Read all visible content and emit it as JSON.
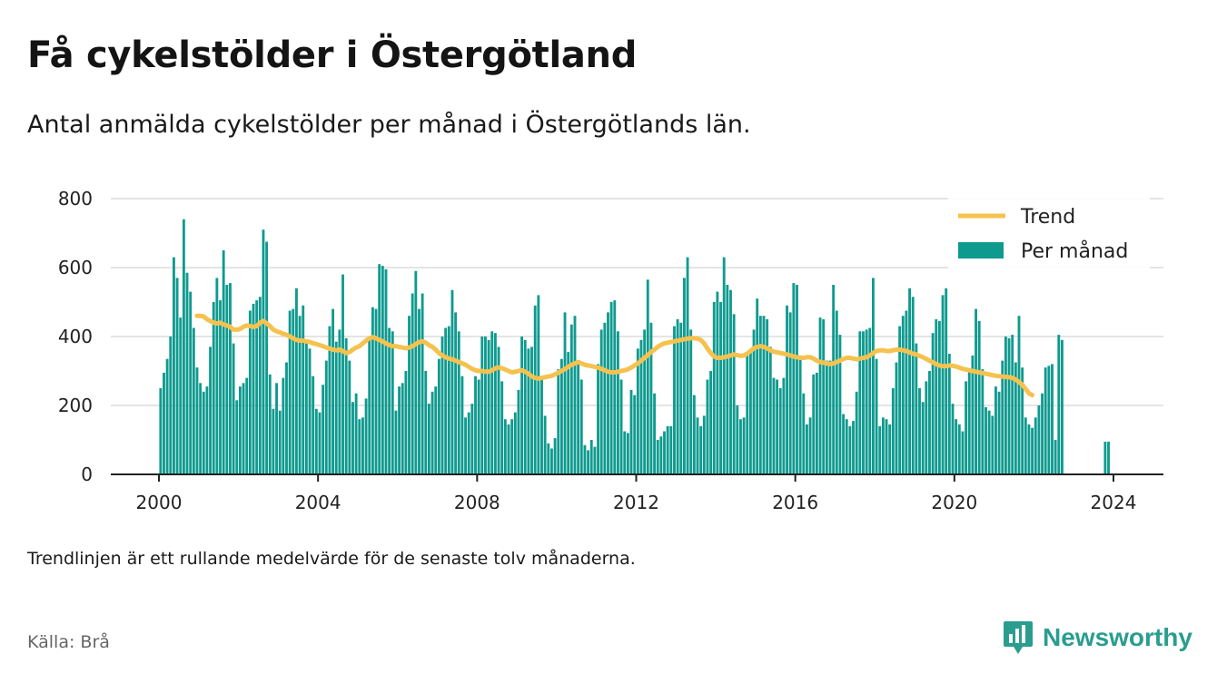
{
  "header": {
    "title": "Få cykelstölder i Östergötland",
    "subtitle": "Antal anmälda cykelstölder per månad i Östergötlands län."
  },
  "footer": {
    "note": "Trendlinjen är ett rullande medelvärde för de senaste tolv månaderna.",
    "source": "Källa: Brå",
    "brand": "Newsworthy"
  },
  "colors": {
    "bar": "#0f9a8f",
    "trend": "#f5c24f",
    "grid": "#dcdcdc",
    "axis": "#222222",
    "brand": "#2a9d8f"
  },
  "chart_data": {
    "type": "bar",
    "x_unit": "month",
    "start": "2000-01",
    "end": "2023-12",
    "xlim": [
      2000,
      2024
    ],
    "ylim": [
      0,
      800
    ],
    "yticks": [
      0,
      200,
      400,
      600,
      800
    ],
    "xticks": [
      2000,
      2004,
      2008,
      2012,
      2016,
      2020,
      2024
    ],
    "grid": true,
    "legend_position": "top-right",
    "series": [
      {
        "name": "Per månad",
        "type": "bar",
        "values": [
          250,
          295,
          335,
          400,
          630,
          570,
          455,
          740,
          585,
          530,
          425,
          310,
          265,
          240,
          255,
          370,
          500,
          570,
          505,
          650,
          550,
          555,
          380,
          215,
          255,
          265,
          280,
          475,
          495,
          505,
          515,
          710,
          675,
          290,
          190,
          265,
          185,
          280,
          325,
          475,
          480,
          540,
          460,
          490,
          380,
          365,
          285,
          190,
          180,
          260,
          330,
          430,
          480,
          385,
          420,
          580,
          395,
          330,
          210,
          235,
          160,
          165,
          220,
          400,
          485,
          480,
          610,
          605,
          595,
          425,
          415,
          185,
          255,
          265,
          300,
          460,
          525,
          590,
          480,
          525,
          300,
          205,
          240,
          255,
          335,
          400,
          425,
          430,
          535,
          470,
          415,
          285,
          165,
          180,
          205,
          285,
          275,
          400,
          400,
          390,
          415,
          410,
          370,
          270,
          160,
          145,
          160,
          180,
          245,
          400,
          390,
          365,
          370,
          490,
          520,
          285,
          170,
          90,
          75,
          105,
          305,
          335,
          470,
          355,
          435,
          460,
          320,
          275,
          85,
          70,
          100,
          80,
          320,
          420,
          440,
          470,
          500,
          505,
          415,
          275,
          125,
          120,
          245,
          230,
          365,
          390,
          420,
          565,
          440,
          235,
          100,
          110,
          125,
          140,
          140,
          430,
          450,
          440,
          570,
          630,
          420,
          230,
          165,
          140,
          170,
          275,
          300,
          500,
          530,
          500,
          630,
          550,
          535,
          465,
          200,
          160,
          165,
          350,
          360,
          420,
          510,
          460,
          460,
          450,
          370,
          280,
          275,
          250,
          280,
          490,
          470,
          555,
          550,
          345,
          235,
          145,
          165,
          290,
          295,
          455,
          450,
          330,
          330,
          550,
          475,
          405,
          175,
          160,
          140,
          155,
          240,
          415,
          415,
          420,
          425,
          570,
          335,
          140,
          165,
          160,
          145,
          250,
          325,
          430,
          460,
          475,
          540,
          515,
          380,
          250,
          210,
          270,
          300,
          410,
          450,
          445,
          520,
          540,
          350,
          205,
          160,
          145,
          125,
          270,
          300,
          345,
          480,
          445,
          305,
          195,
          185,
          170,
          255,
          240,
          330,
          400,
          395,
          405,
          325,
          460,
          310,
          165,
          145,
          135,
          165,
          200,
          235,
          310,
          315,
          320,
          100,
          405,
          390,
          0,
          0,
          0,
          0,
          0,
          0,
          0,
          0,
          0,
          0,
          0,
          0,
          95,
          95,
          0
        ]
      },
      {
        "name": "Trend",
        "type": "line",
        "start": "2000-12",
        "values": [
          460,
          460,
          458,
          450,
          445,
          440,
          438,
          440,
          435,
          432,
          428,
          420,
          420,
          422,
          428,
          432,
          430,
          428,
          430,
          440,
          445,
          438,
          430,
          420,
          415,
          412,
          408,
          405,
          400,
          395,
          390,
          388,
          388,
          386,
          384,
          380,
          378,
          375,
          372,
          368,
          365,
          362,
          360,
          362,
          358,
          352,
          355,
          362,
          368,
          372,
          380,
          388,
          395,
          398,
          395,
          390,
          386,
          380,
          375,
          372,
          372,
          370,
          368,
          366,
          368,
          372,
          378,
          384,
          386,
          382,
          375,
          370,
          362,
          352,
          345,
          340,
          336,
          334,
          330,
          326,
          322,
          318,
          312,
          306,
          302,
          300,
          300,
          298,
          298,
          302,
          308,
          310,
          308,
          304,
          300,
          296,
          298,
          300,
          302,
          298,
          292,
          284,
          280,
          278,
          280,
          282,
          284,
          286,
          290,
          295,
          300,
          306,
          312,
          318,
          322,
          326,
          322,
          318,
          316,
          314,
          312,
          310,
          306,
          302,
          298,
          296,
          296,
          298,
          300,
          302,
          305,
          310,
          316,
          322,
          330,
          338,
          346,
          355,
          362,
          370,
          376,
          380,
          382,
          384,
          386,
          388,
          390,
          392,
          394,
          395,
          395,
          394,
          390,
          380,
          365,
          352,
          342,
          338,
          338,
          340,
          342,
          345,
          348,
          346,
          344,
          345,
          350,
          358,
          366,
          370,
          372,
          370,
          366,
          360,
          356,
          354,
          352,
          350,
          348,
          345,
          342,
          340,
          338,
          338,
          340,
          340,
          336,
          330,
          326,
          324,
          322,
          320,
          322,
          326,
          330,
          335,
          338,
          338,
          336,
          334,
          336,
          338,
          340,
          345,
          352,
          358,
          360,
          360,
          358,
          358,
          360,
          362,
          362,
          360,
          358,
          354,
          350,
          348,
          344,
          340,
          335,
          330,
          325,
          320,
          316,
          314,
          314,
          316,
          315,
          313,
          310,
          306,
          304,
          302,
          300,
          298,
          296,
          294,
          292,
          290,
          288,
          286,
          285,
          284,
          283,
          282,
          280,
          275,
          268,
          260,
          248,
          235,
          230
        ]
      }
    ]
  }
}
